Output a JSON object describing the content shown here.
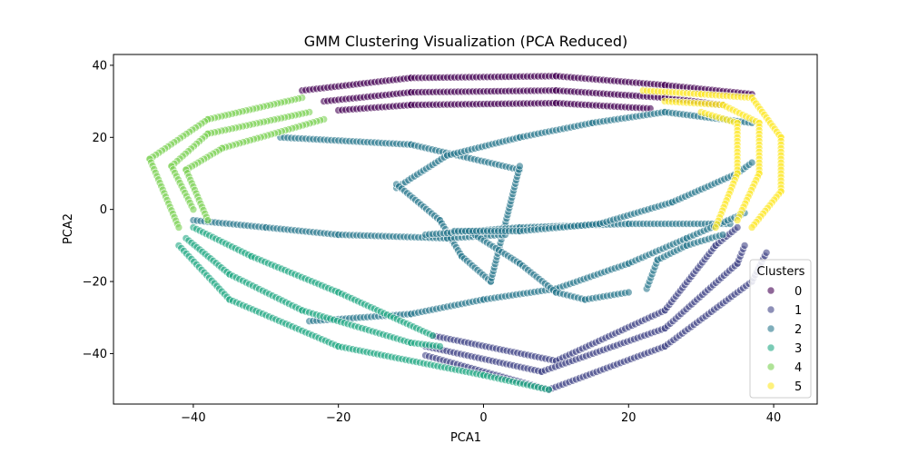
{
  "chart_data": {
    "type": "scatter",
    "title": "GMM Clustering Visualization (PCA Reduced)",
    "xlabel": "PCA1",
    "ylabel": "PCA2",
    "xlim": [
      -51,
      46
    ],
    "ylim": [
      -54,
      43
    ],
    "xticks": [
      -40,
      -20,
      0,
      20,
      40
    ],
    "yticks": [
      -40,
      -20,
      0,
      20,
      40
    ],
    "xtick_labels": [
      "−40",
      "−20",
      "0",
      "20",
      "40"
    ],
    "ytick_labels": [
      "−40",
      "−20",
      "0",
      "20",
      "40"
    ],
    "grid": false,
    "legend": {
      "title": "Clusters",
      "placement": "lower-right",
      "entries": [
        "0",
        "1",
        "2",
        "3",
        "4",
        "5"
      ]
    },
    "marker_opacity": 0.6,
    "series": [
      {
        "name": "0",
        "color": "#440154",
        "segments": [
          [
            [
              -25,
              33
            ],
            [
              -10,
              36.5
            ],
            [
              10,
              37
            ],
            [
              25,
              34.5
            ],
            [
              37,
              32
            ]
          ],
          [
            [
              -22,
              30
            ],
            [
              -10,
              32.5
            ],
            [
              10,
              33
            ],
            [
              25,
              31
            ],
            [
              33,
              29
            ]
          ],
          [
            [
              -20,
              27.5
            ],
            [
              -10,
              29
            ],
            [
              10,
              29.5
            ],
            [
              23,
              28
            ]
          ]
        ]
      },
      {
        "name": "1",
        "color": "#414487",
        "segments": [
          [
            [
              -7,
              -35
            ],
            [
              10,
              -42
            ],
            [
              25,
              -28
            ],
            [
              32,
              -10
            ],
            [
              35,
              -5
            ]
          ],
          [
            [
              -8,
              -38
            ],
            [
              8,
              -45
            ],
            [
              25,
              -33
            ],
            [
              35,
              -15
            ],
            [
              36,
              -10
            ]
          ],
          [
            [
              -8,
              -40.5
            ],
            [
              9,
              -50
            ],
            [
              25,
              -38
            ],
            [
              37,
              -20
            ],
            [
              39,
              -12
            ]
          ]
        ]
      },
      {
        "name": "2",
        "color": "#2a788e",
        "segments": [
          [
            [
              -28,
              20
            ],
            [
              -10,
              18
            ],
            [
              5,
              11
            ]
          ],
          [
            [
              -12,
              6
            ],
            [
              -5,
              15
            ],
            [
              5,
              20
            ],
            [
              15,
              24
            ],
            [
              25,
              27
            ],
            [
              37,
              24
            ]
          ],
          [
            [
              -12,
              7
            ],
            [
              -6,
              -3
            ],
            [
              -3,
              -13
            ],
            [
              1,
              -20
            ],
            [
              5,
              12
            ]
          ],
          [
            [
              -40,
              -3
            ],
            [
              -30,
              -5
            ],
            [
              -20,
              -7
            ],
            [
              -5,
              -8
            ],
            [
              3,
              -7
            ]
          ],
          [
            [
              -8,
              -7
            ],
            [
              5,
              -5
            ],
            [
              20,
              -4
            ],
            [
              34,
              -4
            ]
          ],
          [
            [
              -24,
              -31
            ],
            [
              -10,
              -29
            ],
            [
              0,
              -25
            ],
            [
              10,
              -22
            ],
            [
              20,
              -15
            ],
            [
              28,
              -8
            ],
            [
              36,
              -1
            ]
          ],
          [
            [
              -2,
              -6
            ],
            [
              5,
              -15
            ],
            [
              10,
              -23
            ],
            [
              14,
              -25
            ],
            [
              20,
              -23
            ]
          ],
          [
            [
              -4,
              -6
            ],
            [
              5,
              -6
            ],
            [
              16,
              -4
            ],
            [
              26,
              2
            ],
            [
              35,
              10
            ],
            [
              37,
              13
            ]
          ],
          [
            [
              22.5,
              -22
            ],
            [
              24,
              -14
            ],
            [
              28,
              -10
            ],
            [
              33,
              -7
            ]
          ]
        ]
      },
      {
        "name": "3",
        "color": "#22a884",
        "segments": [
          [
            [
              -40,
              -5
            ],
            [
              -32,
              -13
            ],
            [
              -20,
              -23
            ],
            [
              -7,
              -35
            ]
          ],
          [
            [
              -41,
              -8
            ],
            [
              -35,
              -18
            ],
            [
              -25,
              -28
            ],
            [
              -10,
              -37
            ],
            [
              -6,
              -38
            ]
          ],
          [
            [
              -42,
              -10
            ],
            [
              -35,
              -25
            ],
            [
              -20,
              -38
            ],
            [
              0,
              -46
            ],
            [
              9,
              -50
            ]
          ]
        ]
      },
      {
        "name": "4",
        "color": "#7ad151",
        "segments": [
          [
            [
              -25,
              31
            ],
            [
              -38,
              25
            ],
            [
              -46,
              14
            ],
            [
              -42,
              -5
            ]
          ],
          [
            [
              -24,
              27
            ],
            [
              -38,
              21
            ],
            [
              -43,
              12
            ],
            [
              -40,
              0
            ]
          ],
          [
            [
              -22,
              25
            ],
            [
              -36,
              17
            ],
            [
              -41,
              11
            ],
            [
              -38,
              -3
            ]
          ]
        ]
      },
      {
        "name": "5",
        "color": "#fde725",
        "segments": [
          [
            [
              22,
              33
            ],
            [
              30,
              32
            ],
            [
              37,
              31
            ],
            [
              41,
              20
            ],
            [
              41,
              5
            ],
            [
              37,
              -5
            ]
          ],
          [
            [
              25,
              30
            ],
            [
              33,
              29
            ],
            [
              38,
              24
            ],
            [
              38,
              10
            ],
            [
              35,
              -3
            ]
          ],
          [
            [
              30,
              27
            ],
            [
              35,
              24
            ],
            [
              35,
              10
            ],
            [
              32,
              -5
            ]
          ]
        ]
      }
    ]
  }
}
